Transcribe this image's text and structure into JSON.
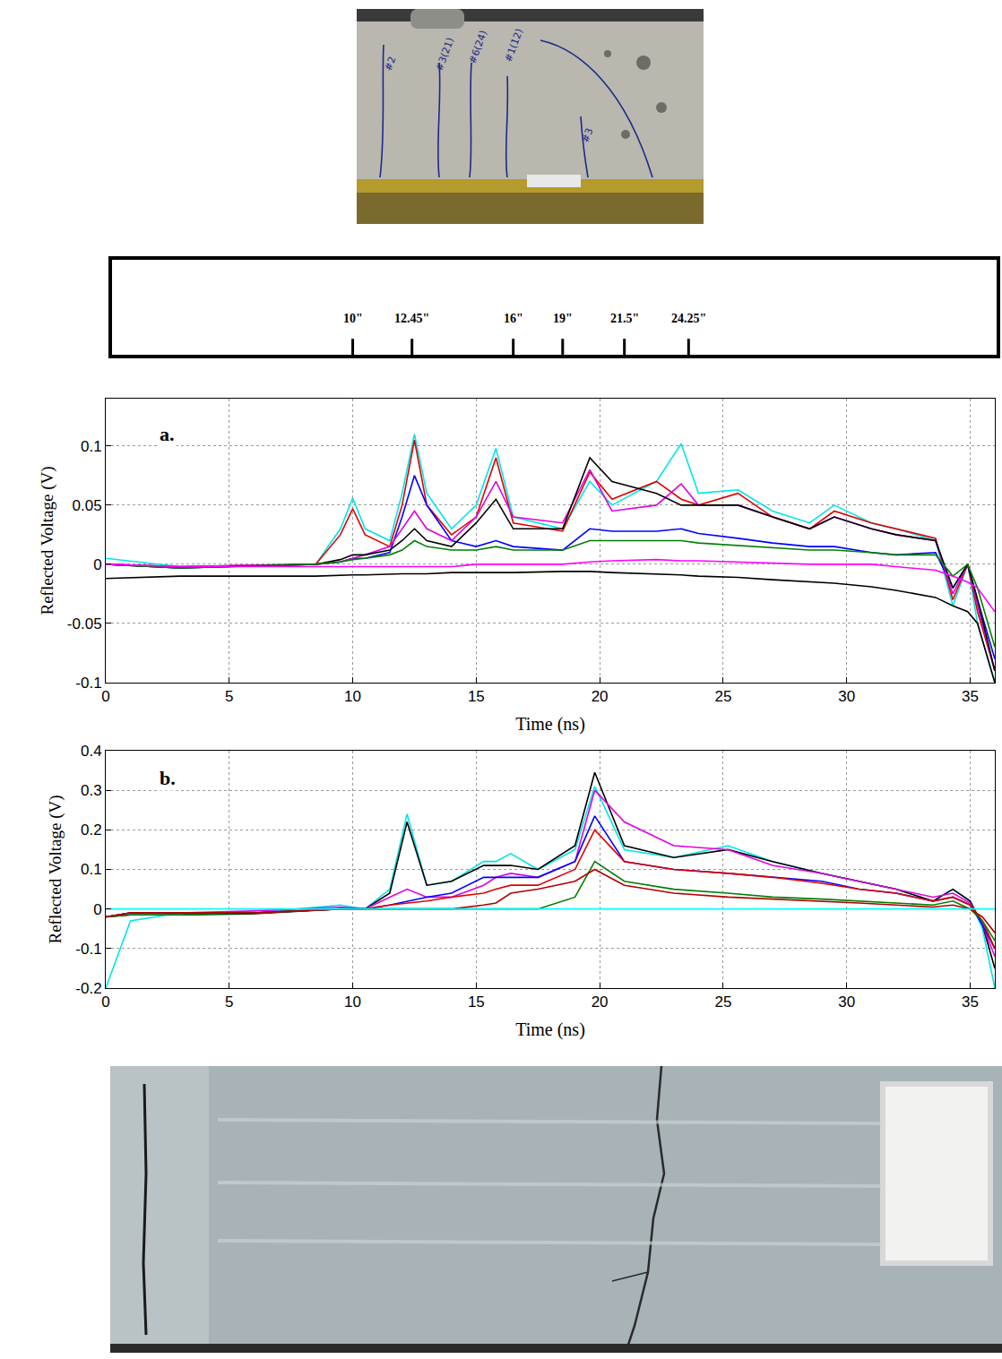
{
  "chart_data": [
    {
      "type": "line",
      "panel": "a.",
      "xlabel": "Time (ns)",
      "ylabel": "Reflected Voltage (V)",
      "xlim": [
        0,
        36
      ],
      "xticks": [
        0,
        5,
        10,
        15,
        20,
        25,
        30,
        35
      ],
      "ylim": [
        -0.1,
        0.14
      ],
      "yticks": [
        -0.1,
        -0.05,
        0,
        0.05,
        0.1
      ],
      "grid": true,
      "annotations": [
        {
          "text": "a.",
          "x": 2.5,
          "y": 0.11
        }
      ],
      "x": [
        0,
        3,
        8.5,
        9.5,
        10,
        10.5,
        11.5,
        12,
        12.5,
        13,
        14,
        15,
        15.8,
        16.5,
        18.5,
        19.6,
        20.5,
        22.3,
        23.3,
        24,
        25.6,
        27,
        28.5,
        29.5,
        31,
        32,
        33.6,
        34.3,
        34.9,
        35.3,
        36
      ],
      "series": [
        {
          "color": "#00e5e5",
          "values": [
            0.005,
            -0.002,
            0,
            0.03,
            0.056,
            0.03,
            0.02,
            0.06,
            0.11,
            0.06,
            0.03,
            0.05,
            0.098,
            0.04,
            0.03,
            0.07,
            0.05,
            0.07,
            0.102,
            0.06,
            0.063,
            0.045,
            0.035,
            0.05,
            0.035,
            0.03,
            0.02,
            -0.035,
            0.0,
            -0.05,
            -0.1
          ]
        },
        {
          "color": "#e00000",
          "values": [
            0.0,
            -0.002,
            0,
            0.025,
            0.047,
            0.025,
            0.015,
            0.05,
            0.105,
            0.05,
            0.025,
            0.04,
            0.09,
            0.035,
            0.028,
            0.078,
            0.055,
            0.07,
            0.055,
            0.05,
            0.06,
            0.04,
            0.03,
            0.045,
            0.035,
            0.03,
            0.022,
            -0.03,
            0.0,
            -0.04,
            -0.09
          ]
        },
        {
          "color": "#0000ff",
          "values": [
            0,
            -0.003,
            0,
            0.002,
            0.005,
            0.005,
            0.01,
            0.04,
            0.075,
            0.05,
            0.02,
            0.015,
            0.02,
            0.015,
            0.012,
            0.03,
            0.028,
            0.028,
            0.03,
            0.026,
            0.022,
            0.018,
            0.015,
            0.015,
            0.01,
            0.008,
            0.01,
            -0.02,
            0,
            -0.03,
            -0.08
          ]
        },
        {
          "color": "#e000e0",
          "values": [
            0,
            -0.002,
            0,
            0.002,
            0.005,
            0.008,
            0.015,
            0.03,
            0.045,
            0.03,
            0.02,
            0.04,
            0.07,
            0.04,
            0.035,
            0.08,
            0.045,
            0.05,
            0.068,
            0.05,
            0.05,
            0.04,
            0.03,
            0.04,
            0.03,
            0.025,
            0.02,
            -0.025,
            0,
            -0.035,
            -0.09
          ]
        },
        {
          "color": "#000000",
          "values": [
            0,
            -0.003,
            0,
            0.004,
            0.008,
            0.008,
            0.012,
            0.02,
            0.03,
            0.02,
            0.015,
            0.035,
            0.055,
            0.03,
            0.03,
            0.09,
            0.07,
            0.06,
            0.05,
            0.05,
            0.05,
            0.04,
            0.03,
            0.04,
            0.03,
            0.025,
            0.02,
            -0.02,
            0,
            -0.03,
            -0.09
          ]
        },
        {
          "color": "#007f00",
          "values": [
            0,
            -0.003,
            0,
            0.002,
            0.004,
            0.005,
            0.008,
            0.012,
            0.02,
            0.015,
            0.012,
            0.012,
            0.015,
            0.012,
            0.012,
            0.02,
            0.02,
            0.02,
            0.02,
            0.018,
            0.016,
            0.014,
            0.012,
            0.012,
            0.01,
            0.008,
            0.008,
            -0.01,
            0,
            -0.02,
            -0.07
          ]
        },
        {
          "color": "#ff00ff",
          "values": [
            0,
            -0.002,
            -0.002,
            -0.002,
            -0.002,
            -0.002,
            -0.002,
            -0.002,
            -0.002,
            -0.002,
            -0.002,
            0,
            0,
            0,
            0,
            0.002,
            0.003,
            0.004,
            0.003,
            0.003,
            0.002,
            0.001,
            0,
            0,
            0,
            -0.002,
            -0.005,
            -0.01,
            -0.015,
            -0.02,
            -0.04
          ]
        },
        {
          "color": "#000000",
          "values": [
            -0.012,
            -0.01,
            -0.01,
            -0.009,
            -0.009,
            -0.009,
            -0.008,
            -0.008,
            -0.008,
            -0.008,
            -0.007,
            -0.007,
            -0.007,
            -0.007,
            -0.006,
            -0.006,
            -0.007,
            -0.008,
            -0.009,
            -0.01,
            -0.011,
            -0.013,
            -0.015,
            -0.016,
            -0.019,
            -0.022,
            -0.028,
            -0.035,
            -0.04,
            -0.05,
            -0.1
          ]
        }
      ]
    },
    {
      "type": "line",
      "panel": "b.",
      "xlabel": "Time (ns)",
      "ylabel": "Reflected Voltage (V)",
      "xlim": [
        0,
        36
      ],
      "xticks": [
        0,
        5,
        10,
        15,
        20,
        25,
        30,
        35
      ],
      "ylim": [
        -0.2,
        0.4
      ],
      "yticks": [
        -0.2,
        -0.1,
        0,
        0.1,
        0.2,
        0.3,
        0.4
      ],
      "grid": true,
      "annotations": [
        {
          "text": "b.",
          "x": 2.5,
          "y": 0.33
        }
      ],
      "x": [
        0,
        1,
        3,
        6,
        9.5,
        10.5,
        11.5,
        12.2,
        13,
        14,
        15.3,
        15.8,
        16.4,
        17.5,
        19,
        19.8,
        21,
        23,
        25.2,
        27,
        29,
        30.5,
        32,
        33.5,
        34.3,
        35,
        35.5,
        36
      ],
      "series": [
        {
          "color": "#00e5e5",
          "values": [
            -0.2,
            -0.03,
            -0.01,
            -0.01,
            0.01,
            0.0,
            0.05,
            0.24,
            0.06,
            0.07,
            0.12,
            0.12,
            0.14,
            0.1,
            0.15,
            0.31,
            0.15,
            0.13,
            0.16,
            0.12,
            0.09,
            0.07,
            0.05,
            0.02,
            0.05,
            0.02,
            -0.05,
            -0.2
          ]
        },
        {
          "color": "#000000",
          "values": [
            -0.02,
            -0.015,
            -0.015,
            -0.012,
            0.0,
            0.0,
            0.04,
            0.22,
            0.06,
            0.07,
            0.11,
            0.11,
            0.11,
            0.1,
            0.16,
            0.345,
            0.16,
            0.13,
            0.15,
            0.12,
            0.09,
            0.07,
            0.05,
            0.02,
            0.05,
            0.02,
            -0.04,
            -0.15
          ]
        },
        {
          "color": "#e000e0",
          "values": [
            -0.02,
            -0.01,
            -0.01,
            -0.005,
            0.005,
            0.0,
            0.03,
            0.05,
            0.03,
            0.03,
            0.06,
            0.08,
            0.09,
            0.08,
            0.12,
            0.3,
            0.22,
            0.16,
            0.15,
            0.11,
            0.09,
            0.07,
            0.05,
            0.03,
            0.04,
            0.015,
            -0.04,
            -0.12
          ]
        },
        {
          "color": "#0000ff",
          "values": [
            -0.02,
            -0.01,
            -0.01,
            -0.01,
            0.0,
            0.0,
            0.01,
            0.02,
            0.03,
            0.04,
            0.08,
            0.08,
            0.08,
            0.08,
            0.12,
            0.235,
            0.12,
            0.1,
            0.09,
            0.08,
            0.07,
            0.05,
            0.04,
            0.02,
            0.03,
            0.01,
            -0.04,
            -0.1
          ]
        },
        {
          "color": "#e00000",
          "values": [
            -0.02,
            -0.01,
            -0.01,
            -0.01,
            0.0,
            0.0,
            0.01,
            0.015,
            0.02,
            0.03,
            0.04,
            0.05,
            0.06,
            0.06,
            0.1,
            0.2,
            0.12,
            0.1,
            0.09,
            0.08,
            0.065,
            0.05,
            0.04,
            0.02,
            0.03,
            0.01,
            -0.03,
            -0.1
          ]
        },
        {
          "color": "#007f00",
          "values": [
            -0.02,
            -0.015,
            -0.015,
            -0.01,
            0.0,
            0.0,
            0.0,
            0.0,
            0.0,
            0.0,
            0.0,
            0.0,
            0.0,
            0.0,
            0.03,
            0.12,
            0.07,
            0.05,
            0.04,
            0.03,
            0.025,
            0.02,
            0.015,
            0.01,
            0.02,
            0.0,
            -0.03,
            -0.08
          ]
        },
        {
          "color": "#b00000",
          "values": [
            -0.02,
            -0.01,
            -0.01,
            -0.01,
            0,
            0,
            0,
            0,
            0,
            0,
            0.01,
            0.015,
            0.04,
            0.05,
            0.07,
            0.1,
            0.06,
            0.04,
            0.03,
            0.025,
            0.02,
            0.015,
            0.01,
            0.005,
            0.01,
            0,
            -0.02,
            -0.06
          ]
        },
        {
          "color": "#00ffff",
          "values": [
            0,
            0,
            0,
            0,
            0,
            0,
            0,
            0,
            0,
            0,
            0,
            0,
            0,
            0,
            0,
            0,
            0,
            0,
            0,
            0,
            0,
            0,
            0,
            0,
            0,
            0,
            0,
            0
          ]
        }
      ]
    }
  ],
  "schematic": {
    "xlim": [
      0,
      36
    ],
    "cracks": [
      {
        "label": "10\"",
        "x": 10
      },
      {
        "label": "12.45\"",
        "x": 12.4
      },
      {
        "label": "16\"",
        "x": 16.5
      },
      {
        "label": "19\"",
        "x": 18.5
      },
      {
        "label": "21.5\"",
        "x": 21
      },
      {
        "label": "24.25\"",
        "x": 23.6
      }
    ]
  },
  "photos": {
    "top_labels": [
      "#2",
      "#3(21)",
      "#6(24)",
      "#1(12)",
      "#3"
    ]
  }
}
